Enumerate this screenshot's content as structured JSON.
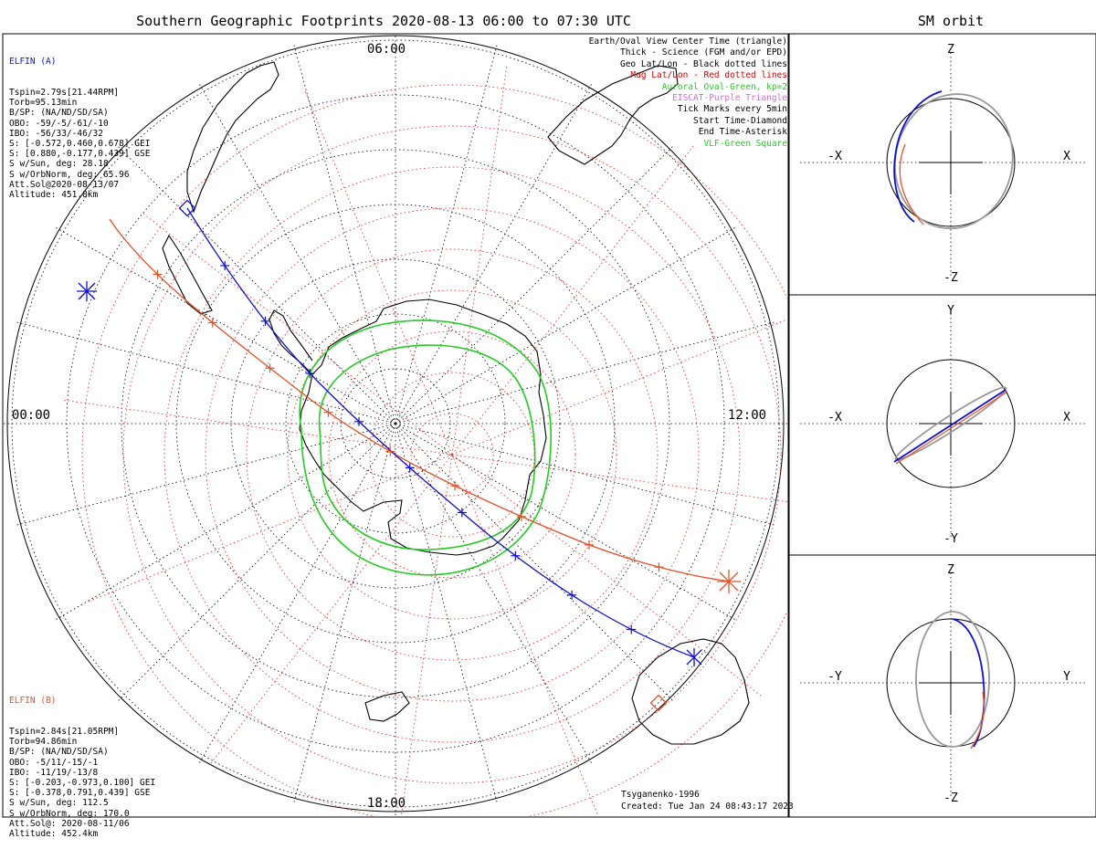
{
  "title": "Southern Geographic Footprints 2020-08-13 06:00 to 07:30 UTC",
  "orbit_title": "SM orbit",
  "clock_labels": {
    "top": "06:00",
    "left": "00:00",
    "right": "12:00",
    "bottom": "18:00"
  },
  "elfin_a": {
    "name": "ELFIN (A)",
    "color": "#1010cc",
    "lines": [
      "Tspin=2.79s[21.44RPM]",
      "Torb=95.13min",
      "B/SP: (NA/ND/SD/SA)",
      "OBO: -59/-5/-61/-10",
      "IBO: -56/33/-46/32",
      "S: [-0.572,0.460,0.678] GEI",
      "S: [0.880,-0.177,0.439] GSE",
      "S w/Sun, deg: 28.18",
      "S w/OrbNorm, deg: 65.96",
      "Att.Sol@2020-08-13/07",
      "Altitude: 451.8km"
    ]
  },
  "elfin_b": {
    "name": "ELFIN (B)",
    "color": "#e8502a",
    "lines": [
      "Tspin=2.84s[21.05RPM]",
      "Torb=94.86min",
      "B/SP: (NA/ND/SD/SA)",
      "OBO: -5/11/-15/-1",
      "IBO: -11/19/-13/8",
      "S: [-0.203,-0.973,0.100] GEI",
      "S: [-0.378,0.791,0.439] GSE",
      "S w/Sun, deg: 112.5",
      "S w/OrbNorm, deg: 170.0",
      "Att.Sol@: 2020-08-11/06",
      "Altitude: 452.4km"
    ]
  },
  "legend": [
    {
      "text": "Earth/Oval View Center Time (triangle)",
      "color": "#000000"
    },
    {
      "text": "Thick - Science (FGM and/or EPD)",
      "color": "#000000"
    },
    {
      "text": "Geo Lat/Lon - Black dotted lines",
      "color": "#000000"
    },
    {
      "text": "Mag Lat/Lon - Red dotted lines",
      "color": "#dd0000"
    },
    {
      "text": "Auroral Oval-Green, kp=2",
      "color": "#22cc22"
    },
    {
      "text": "EISCAT-Purple Triangle",
      "color": "#dd66dd"
    },
    {
      "text": "Tick Marks every 5min",
      "color": "#000000"
    },
    {
      "text": "Start Time-Diamond",
      "color": "#000000"
    },
    {
      "text": "End Time-Asterisk",
      "color": "#000000"
    },
    {
      "text": "VLF-Green Square",
      "color": "#22cc22"
    }
  ],
  "footer": {
    "model": "Tsyganenko-1996",
    "created": "Created: Tue Jan 24 08:43:17 2023"
  },
  "orbit_panels": [
    {
      "top": "Z",
      "bottom": "-Z",
      "left": "-X",
      "right": "X"
    },
    {
      "top": "Y",
      "bottom": "-Y",
      "left": "-X",
      "right": "X"
    },
    {
      "top": "Z",
      "bottom": "-Z",
      "left": "-Y",
      "right": "Y"
    }
  ]
}
